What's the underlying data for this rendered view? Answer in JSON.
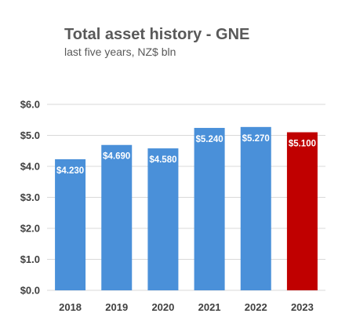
{
  "chart_data": {
    "type": "bar",
    "title": "Total asset history - GNE",
    "subtitle": "last five years, NZ$ bln",
    "categories": [
      "2018",
      "2019",
      "2020",
      "2021",
      "2022",
      "2023"
    ],
    "values": [
      4.23,
      4.69,
      4.58,
      5.24,
      5.27,
      5.1
    ],
    "data_labels": [
      "$4.230",
      "$4.690",
      "$4.580",
      "$5.240",
      "$5.270",
      "$5.100"
    ],
    "bar_colors": [
      "#4a90d9",
      "#4a90d9",
      "#4a90d9",
      "#4a90d9",
      "#4a90d9",
      "#c00000"
    ],
    "ylim": [
      0,
      6
    ],
    "yticks": [
      0,
      1,
      2,
      3,
      4,
      5,
      6
    ],
    "ytick_labels": [
      "$0.0",
      "$1.0",
      "$2.0",
      "$3.0",
      "$4.0",
      "$5.0",
      "$6.0"
    ],
    "grid": true,
    "legend": "none"
  }
}
